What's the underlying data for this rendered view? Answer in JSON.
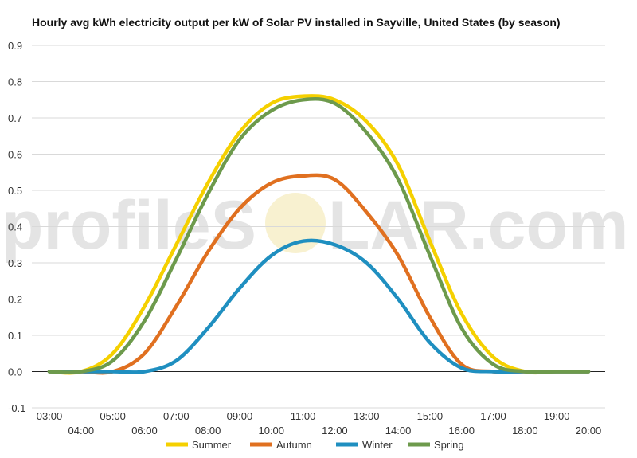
{
  "chart_data": {
    "type": "line",
    "title": "Hourly avg kWh electricity output per kW of Solar PV installed in Sayville, United States (by season)",
    "xlabel": "",
    "ylabel": "",
    "x": [
      "03:00",
      "04:00",
      "05:00",
      "06:00",
      "07:00",
      "08:00",
      "09:00",
      "10:00",
      "11:00",
      "12:00",
      "13:00",
      "14:00",
      "15:00",
      "16:00",
      "17:00",
      "18:00",
      "19:00",
      "20:00"
    ],
    "y_ticks": [
      "-0.1",
      "0.0",
      "0.1",
      "0.2",
      "0.3",
      "0.4",
      "0.5",
      "0.6",
      "0.7",
      "0.8",
      "0.9"
    ],
    "ylim": [
      -0.1,
      0.9
    ],
    "grid": true,
    "legend_position": "bottom",
    "series": [
      {
        "name": "Summer",
        "color": "#f5d000",
        "values": [
          0,
          0,
          0.05,
          0.18,
          0.35,
          0.52,
          0.66,
          0.74,
          0.76,
          0.75,
          0.69,
          0.57,
          0.36,
          0.16,
          0.04,
          0,
          0,
          0
        ]
      },
      {
        "name": "Autumn",
        "color": "#e07020",
        "values": [
          0,
          0,
          0,
          0.05,
          0.18,
          0.33,
          0.45,
          0.52,
          0.54,
          0.53,
          0.44,
          0.32,
          0.15,
          0.02,
          0,
          0,
          0,
          0
        ]
      },
      {
        "name": "Winter",
        "color": "#1f8fc0",
        "values": [
          0,
          0,
          0,
          0,
          0.03,
          0.12,
          0.23,
          0.32,
          0.36,
          0.35,
          0.3,
          0.2,
          0.08,
          0.01,
          0,
          0,
          0,
          0
        ]
      },
      {
        "name": "Spring",
        "color": "#6d9a4c",
        "values": [
          0,
          0,
          0.03,
          0.14,
          0.31,
          0.49,
          0.64,
          0.72,
          0.75,
          0.74,
          0.66,
          0.53,
          0.32,
          0.12,
          0.02,
          0,
          0,
          0
        ]
      }
    ]
  },
  "watermark": {
    "text_left": "profileS",
    "text_right": "LAR.com"
  }
}
